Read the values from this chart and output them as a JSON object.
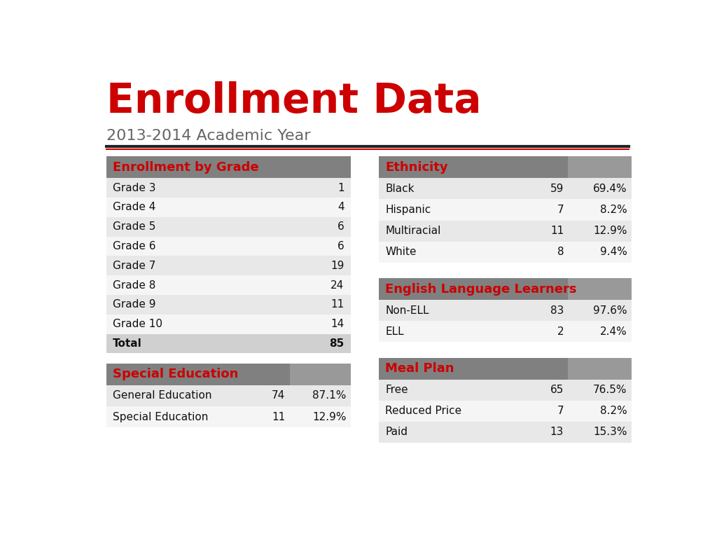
{
  "title": "Enrollment Data",
  "subtitle": "2013-2014 Academic Year",
  "title_color": "#cc0000",
  "subtitle_color": "#666666",
  "header_bg": "#808080",
  "header_text_color": "#cc0000",
  "row_alt1": "#e8e8e8",
  "row_alt2": "#f5f5f5",
  "total_row_bg": "#d0d0d0",
  "bg_color": "#ffffff",
  "grade_table": {
    "header": "Enrollment by Grade",
    "rows": [
      [
        "Grade 3",
        "1",
        false
      ],
      [
        "Grade 4",
        "4",
        false
      ],
      [
        "Grade 5",
        "6",
        false
      ],
      [
        "Grade 6",
        "6",
        false
      ],
      [
        "Grade 7",
        "19",
        false
      ],
      [
        "Grade 8",
        "24",
        false
      ],
      [
        "Grade 9",
        "11",
        false
      ],
      [
        "Grade 10",
        "14",
        false
      ],
      [
        "Total",
        "85",
        true
      ]
    ]
  },
  "special_ed_table": {
    "header": "Special Education",
    "rows": [
      [
        "General Education",
        "74",
        "87.1%"
      ],
      [
        "Special Education",
        "11",
        "12.9%"
      ]
    ]
  },
  "ethnicity_table": {
    "header": "Ethnicity",
    "rows": [
      [
        "Black",
        "59",
        "69.4%"
      ],
      [
        "Hispanic",
        "7",
        "8.2%"
      ],
      [
        "Multiracial",
        "11",
        "12.9%"
      ],
      [
        "White",
        "8",
        "9.4%"
      ]
    ]
  },
  "ell_table": {
    "header": "English Language Learners",
    "rows": [
      [
        "Non-ELL",
        "83",
        "97.6%"
      ],
      [
        "ELL",
        "2",
        "2.4%"
      ]
    ]
  },
  "meal_table": {
    "header": "Meal Plan",
    "rows": [
      [
        "Free",
        "65",
        "76.5%"
      ],
      [
        "Reduced Price",
        "7",
        "8.2%"
      ],
      [
        "Paid",
        "13",
        "15.3%"
      ]
    ]
  }
}
